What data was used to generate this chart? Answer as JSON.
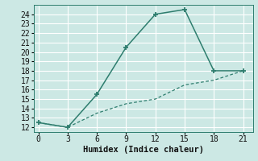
{
  "xlabel": "Humidex (Indice chaleur)",
  "bg_color": "#cce8e4",
  "grid_color": "#ffffff",
  "line_color": "#2e7d6e",
  "x_line1": [
    0,
    3,
    6,
    9,
    12,
    15,
    18,
    21
  ],
  "y_line1": [
    12.5,
    12,
    15.5,
    20.5,
    24,
    24.5,
    18,
    18
  ],
  "x_line2": [
    0,
    3,
    6,
    9,
    12,
    15,
    18,
    21
  ],
  "y_line2": [
    12.5,
    12,
    13.5,
    14.5,
    15,
    16.5,
    17,
    18
  ],
  "xlim": [
    -0.5,
    22
  ],
  "ylim": [
    11.5,
    25
  ],
  "xticks": [
    0,
    3,
    6,
    9,
    12,
    15,
    18,
    21
  ],
  "yticks": [
    12,
    13,
    14,
    15,
    16,
    17,
    18,
    19,
    20,
    21,
    22,
    23,
    24
  ],
  "tick_fontsize": 7,
  "xlabel_fontsize": 7.5
}
